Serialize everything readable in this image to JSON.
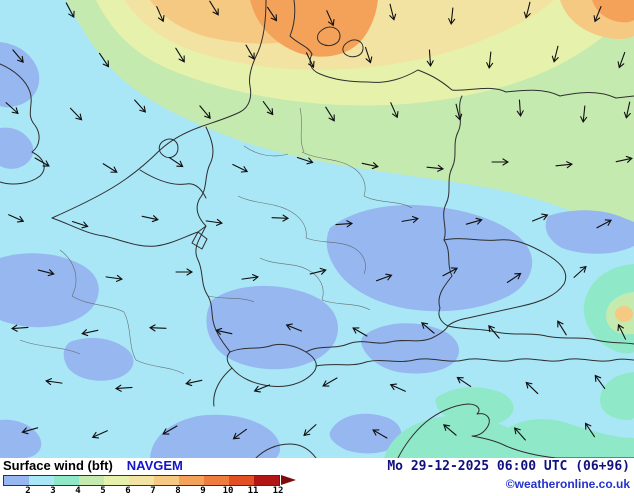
{
  "footer": {
    "title": "Surface wind (bft)",
    "model": "NAVGEM",
    "datetime": "Mo 29-12-2025 06:00 UTC (06+96)",
    "copyright": "©weatheronline.co.uk"
  },
  "colors": {
    "titlecol": "#000000",
    "modelcol": "#1414c8",
    "datecol": "#10107e",
    "copycol": "#2333cc"
  },
  "legend": {
    "values": [
      "2",
      "3",
      "4",
      "5",
      "6",
      "7",
      "8",
      "9",
      "10",
      "11",
      "12"
    ],
    "colors": [
      "#96b7f0",
      "#a9e6f6",
      "#8fe9c9",
      "#c4eab0",
      "#e6f2ac",
      "#f3e3a2",
      "#f6c983",
      "#f4a259",
      "#ee7c3c",
      "#e14f23",
      "#b31414"
    ],
    "arrow_color": "#7d0b0b"
  },
  "palette": {
    "blue": "#96b7f0",
    "cyan": "#a9e6f6",
    "turquoise": "#8fe9c9",
    "green": "#c4eab0",
    "yellow": "#e6f2ac",
    "tan": "#f3e3a2",
    "orange_light": "#f6c983",
    "orange": "#f4a259",
    "bordercol": "#2e2e2e",
    "statecol": "#5a5a5a",
    "arrowcol": "#101010"
  },
  "map": {
    "arrows": [
      [
        70,
        10,
        62
      ],
      [
        160,
        14,
        66
      ],
      [
        214,
        8,
        58
      ],
      [
        272,
        14,
        56
      ],
      [
        330,
        18,
        66
      ],
      [
        392,
        12,
        76
      ],
      [
        452,
        16,
        96
      ],
      [
        528,
        10,
        104
      ],
      [
        598,
        14,
        112
      ],
      [
        18,
        56,
        50
      ],
      [
        104,
        60,
        56
      ],
      [
        180,
        55,
        58
      ],
      [
        250,
        52,
        60
      ],
      [
        310,
        60,
        64
      ],
      [
        368,
        55,
        72
      ],
      [
        430,
        58,
        86
      ],
      [
        490,
        60,
        96
      ],
      [
        556,
        54,
        104
      ],
      [
        622,
        60,
        110
      ],
      [
        12,
        108,
        42
      ],
      [
        76,
        114,
        46
      ],
      [
        140,
        106,
        48
      ],
      [
        205,
        112,
        50
      ],
      [
        268,
        108,
        54
      ],
      [
        330,
        114,
        58
      ],
      [
        394,
        110,
        66
      ],
      [
        458,
        112,
        76
      ],
      [
        520,
        108,
        86
      ],
      [
        584,
        114,
        96
      ],
      [
        628,
        110,
        102
      ],
      [
        42,
        162,
        30
      ],
      [
        110,
        168,
        32
      ],
      [
        176,
        162,
        34
      ],
      [
        240,
        168,
        26
      ],
      [
        305,
        160,
        18
      ],
      [
        370,
        165,
        12
      ],
      [
        435,
        168,
        6
      ],
      [
        500,
        162,
        0
      ],
      [
        564,
        165,
        -6
      ],
      [
        624,
        160,
        -12
      ],
      [
        16,
        218,
        24
      ],
      [
        80,
        224,
        18
      ],
      [
        150,
        218,
        12
      ],
      [
        214,
        222,
        8
      ],
      [
        280,
        218,
        2
      ],
      [
        344,
        224,
        -4
      ],
      [
        410,
        220,
        -10
      ],
      [
        474,
        222,
        -16
      ],
      [
        540,
        218,
        -22
      ],
      [
        604,
        224,
        -28
      ],
      [
        46,
        272,
        14
      ],
      [
        114,
        278,
        8
      ],
      [
        184,
        272,
        0
      ],
      [
        250,
        278,
        -8
      ],
      [
        318,
        272,
        -14
      ],
      [
        384,
        278,
        -20
      ],
      [
        450,
        272,
        -28
      ],
      [
        514,
        278,
        -34
      ],
      [
        580,
        272,
        -42
      ],
      [
        20,
        328,
        176
      ],
      [
        90,
        332,
        168
      ],
      [
        158,
        328,
        -178
      ],
      [
        224,
        332,
        -168
      ],
      [
        294,
        328,
        -158
      ],
      [
        360,
        332,
        -150
      ],
      [
        428,
        328,
        -140
      ],
      [
        494,
        332,
        -130
      ],
      [
        562,
        328,
        -122
      ],
      [
        622,
        332,
        -116
      ],
      [
        54,
        382,
        -172
      ],
      [
        124,
        388,
        176
      ],
      [
        194,
        382,
        168
      ],
      [
        262,
        388,
        158
      ],
      [
        330,
        382,
        150
      ],
      [
        398,
        388,
        -156
      ],
      [
        464,
        382,
        -146
      ],
      [
        532,
        388,
        -136
      ],
      [
        600,
        382,
        -126
      ],
      [
        30,
        430,
        164
      ],
      [
        100,
        434,
        156
      ],
      [
        170,
        430,
        150
      ],
      [
        240,
        434,
        144
      ],
      [
        310,
        430,
        138
      ],
      [
        380,
        434,
        -150
      ],
      [
        450,
        430,
        -140
      ],
      [
        520,
        434,
        -132
      ],
      [
        590,
        430,
        -124
      ]
    ]
  }
}
